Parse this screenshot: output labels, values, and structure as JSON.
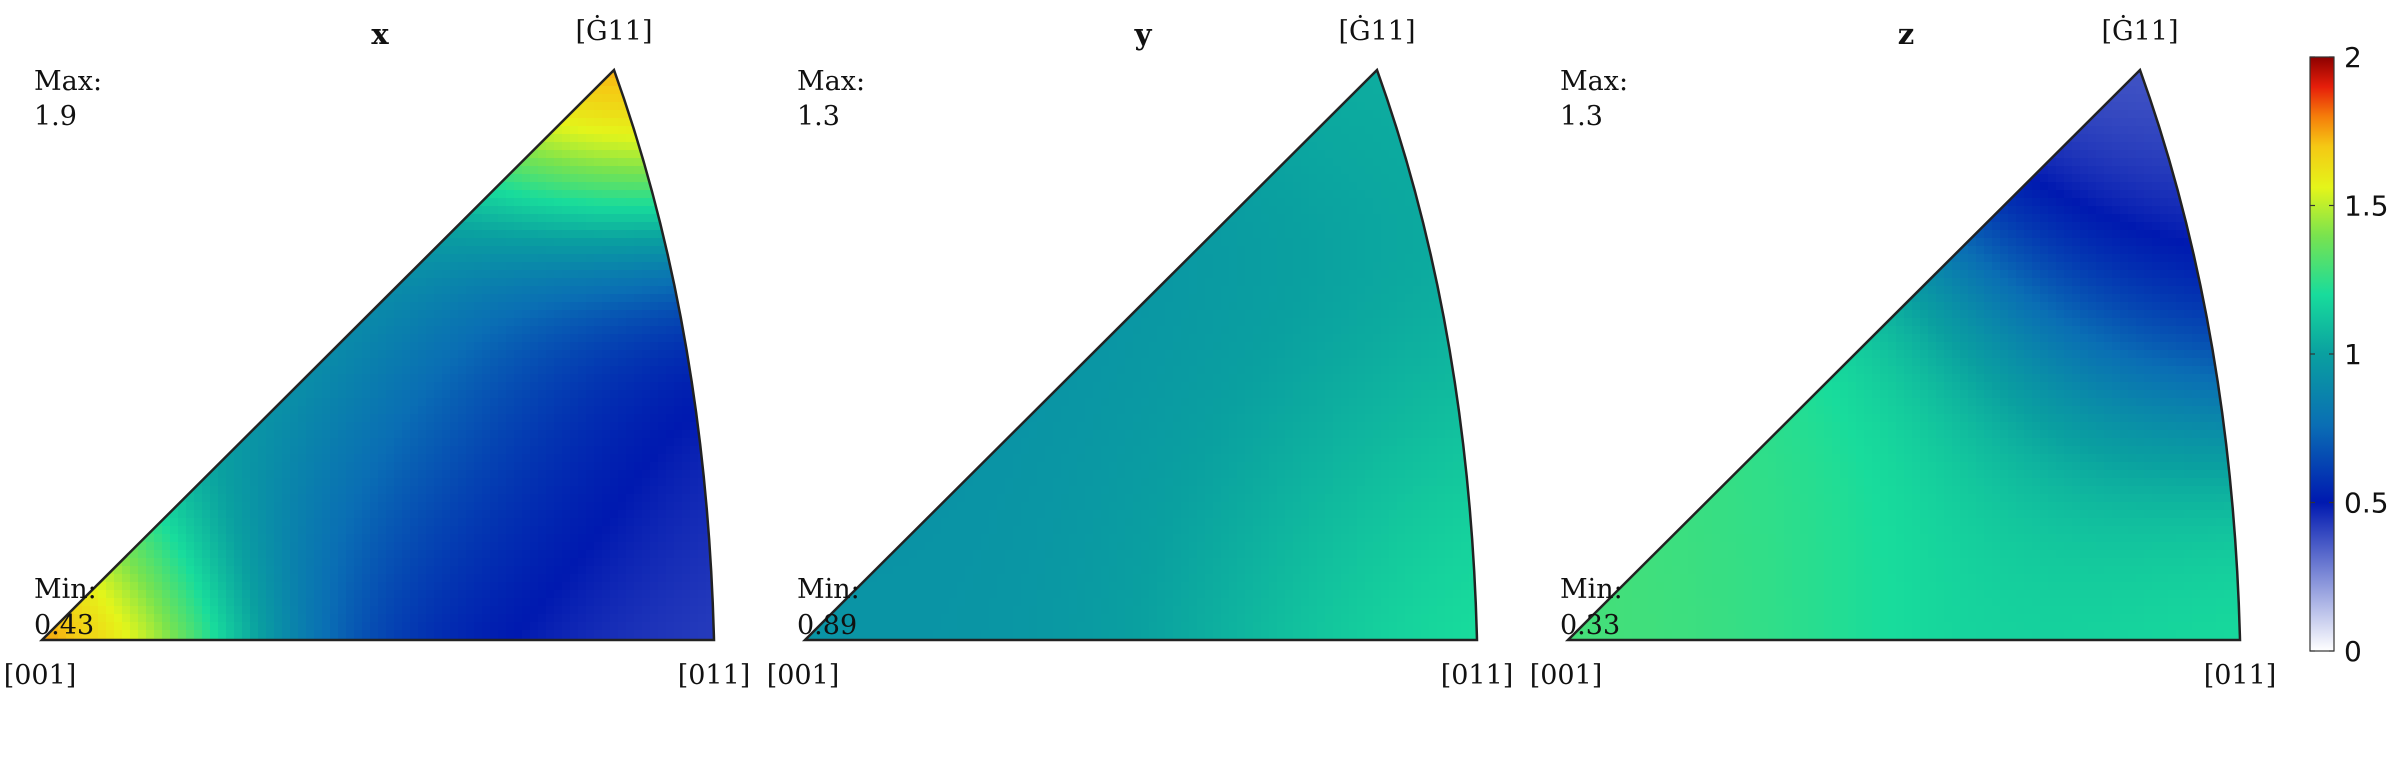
{
  "chart_data": [
    {
      "type": "heatmap",
      "subtype": "inverse-pole-figure",
      "title": "x",
      "corner_labels": {
        "origin": "[001]",
        "right": "[011]",
        "top": "[Ġ11]"
      },
      "max_label": "Max:",
      "max_value": "1.9",
      "min_label": "Min:",
      "min_value": "0.43",
      "field": {
        "origin": 1.9,
        "top": 1.9,
        "blobs": [
          {
            "u": 0.2,
            "v": 0.7,
            "value": 1.05,
            "spread": 0.28
          },
          {
            "u": 0.4,
            "v": 0.4,
            "value": 1.15,
            "spread": 0.25
          },
          {
            "u": 0.78,
            "v": 0.08,
            "value": 0.35,
            "spread": 0.28
          },
          {
            "u": 0.9,
            "v": 0.35,
            "value": 0.45,
            "spread": 0.3
          },
          {
            "u": 0.6,
            "v": 0.25,
            "value": 0.6,
            "spread": 0.25
          }
        ]
      }
    },
    {
      "type": "heatmap",
      "subtype": "inverse-pole-figure",
      "title": "y",
      "corner_labels": {
        "origin": "[001]",
        "right": "[011]",
        "top": "[Ġ11]"
      },
      "max_label": "Max:",
      "max_value": "1.3",
      "min_label": "Min:",
      "min_value": "0.89",
      "field": {
        "origin": 0.95,
        "top": 1.05,
        "blobs": [
          {
            "u": 0.3,
            "v": 0.3,
            "value": 0.9,
            "spread": 0.3
          },
          {
            "u": 0.55,
            "v": 0.45,
            "value": 0.9,
            "spread": 0.28
          },
          {
            "u": 0.9,
            "v": 0.08,
            "value": 1.3,
            "spread": 0.25
          },
          {
            "u": 0.75,
            "v": 0.3,
            "value": 1.1,
            "spread": 0.3
          },
          {
            "u": 0.25,
            "v": 0.05,
            "value": 0.95,
            "spread": 0.3
          }
        ]
      }
    },
    {
      "type": "heatmap",
      "subtype": "inverse-pole-figure",
      "title": "z",
      "corner_labels": {
        "origin": "[001]",
        "right": "[011]",
        "top": "[Ġ11]"
      },
      "max_label": "Max:",
      "max_value": "1.3",
      "min_label": "Min:",
      "min_value": "0.33",
      "field": {
        "origin": 1.3,
        "top": 0.33,
        "blobs": [
          {
            "u": 0.15,
            "v": 0.1,
            "value": 1.3,
            "spread": 0.3
          },
          {
            "u": 0.4,
            "v": 0.4,
            "value": 1.3,
            "spread": 0.22
          },
          {
            "u": 0.65,
            "v": 0.15,
            "value": 1.1,
            "spread": 0.3
          },
          {
            "u": 0.95,
            "v": 0.05,
            "value": 1.25,
            "spread": 0.22
          },
          {
            "u": 0.85,
            "v": 0.65,
            "value": 0.45,
            "spread": 0.25
          }
        ]
      }
    }
  ],
  "colorbar": {
    "min": 0,
    "max": 2,
    "ticks": [
      {
        "value": 0,
        "label": "0"
      },
      {
        "value": 0.5,
        "label": "0.5"
      },
      {
        "value": 1,
        "label": "1"
      },
      {
        "value": 1.5,
        "label": "1.5"
      },
      {
        "value": 2,
        "label": "2"
      }
    ],
    "colormap": [
      [
        0.0,
        "#ffffff"
      ],
      [
        0.25,
        "#0019b0"
      ],
      [
        0.38,
        "#0a6eb4"
      ],
      [
        0.5,
        "#0aa0a0"
      ],
      [
        0.6,
        "#18dc9c"
      ],
      [
        0.7,
        "#7ae34e"
      ],
      [
        0.78,
        "#e4f51a"
      ],
      [
        0.85,
        "#f5c814"
      ],
      [
        0.9,
        "#f57d0a"
      ],
      [
        0.95,
        "#e61e0a"
      ],
      [
        1.0,
        "#8c0000"
      ]
    ]
  }
}
